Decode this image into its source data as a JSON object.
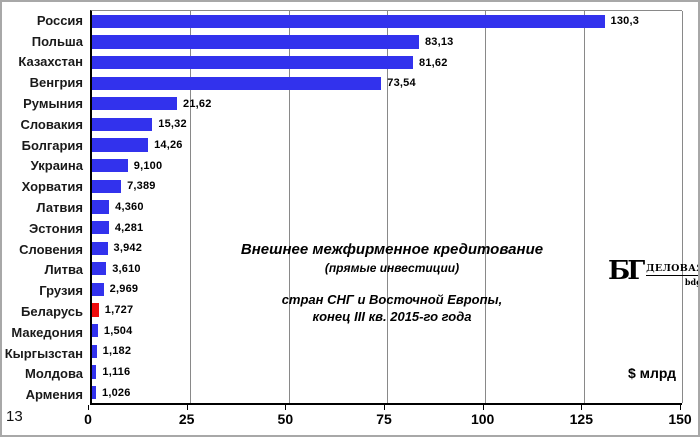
{
  "frame": {
    "corner_label": "13"
  },
  "chart_data": {
    "type": "bar",
    "orientation": "horizontal",
    "title": "Внешнее межфирменное кредитование",
    "subtitle": "(прямые инвестиции)",
    "note_line1": "стран СНГ и Восточной Европы,",
    "note_line2": "конец III кв. 2015-го года",
    "xlabel": "$ млрд",
    "xlim": [
      0,
      150
    ],
    "xticks": [
      0,
      25,
      50,
      75,
      100,
      125,
      150
    ],
    "grid": "vertical gridlines at each x tick",
    "legend": "none",
    "categories": [
      "Россия",
      "Польша",
      "Казахстан",
      "Венгрия",
      "Румыния",
      "Словакия",
      "Болгария",
      "Украина",
      "Хорватия",
      "Латвия",
      "Эстония",
      "Словения",
      "Литва",
      "Грузия",
      "Беларусь",
      "Македония",
      "Кыргызстан",
      "Молдова",
      "Армения"
    ],
    "values": [
      130.3,
      83.13,
      81.62,
      73.54,
      21.62,
      15.32,
      14.26,
      9.1,
      7.389,
      4.36,
      4.281,
      3.942,
      3.61,
      2.969,
      1.727,
      1.504,
      1.182,
      1.116,
      1.026
    ],
    "value_labels": [
      "130,3",
      "83,13",
      "81,62",
      "73,54",
      "21,62",
      "15,32",
      "14,26",
      "9,100",
      "7,389",
      "4,360",
      "4,281",
      "3,942",
      "3,610",
      "2,969",
      "1,727",
      "1,504",
      "1,182",
      "1,116",
      "1,026"
    ],
    "bar_color_default": "#3232ED",
    "bar_color_highlight": "#EE0C0C",
    "highlight_index": 14,
    "highlight_category": "Беларусь"
  },
  "logo": {
    "monogram": "БГ",
    "name": "ДЕЛОВАЯ ГАЗЕТА",
    "site": "bdg.by"
  }
}
